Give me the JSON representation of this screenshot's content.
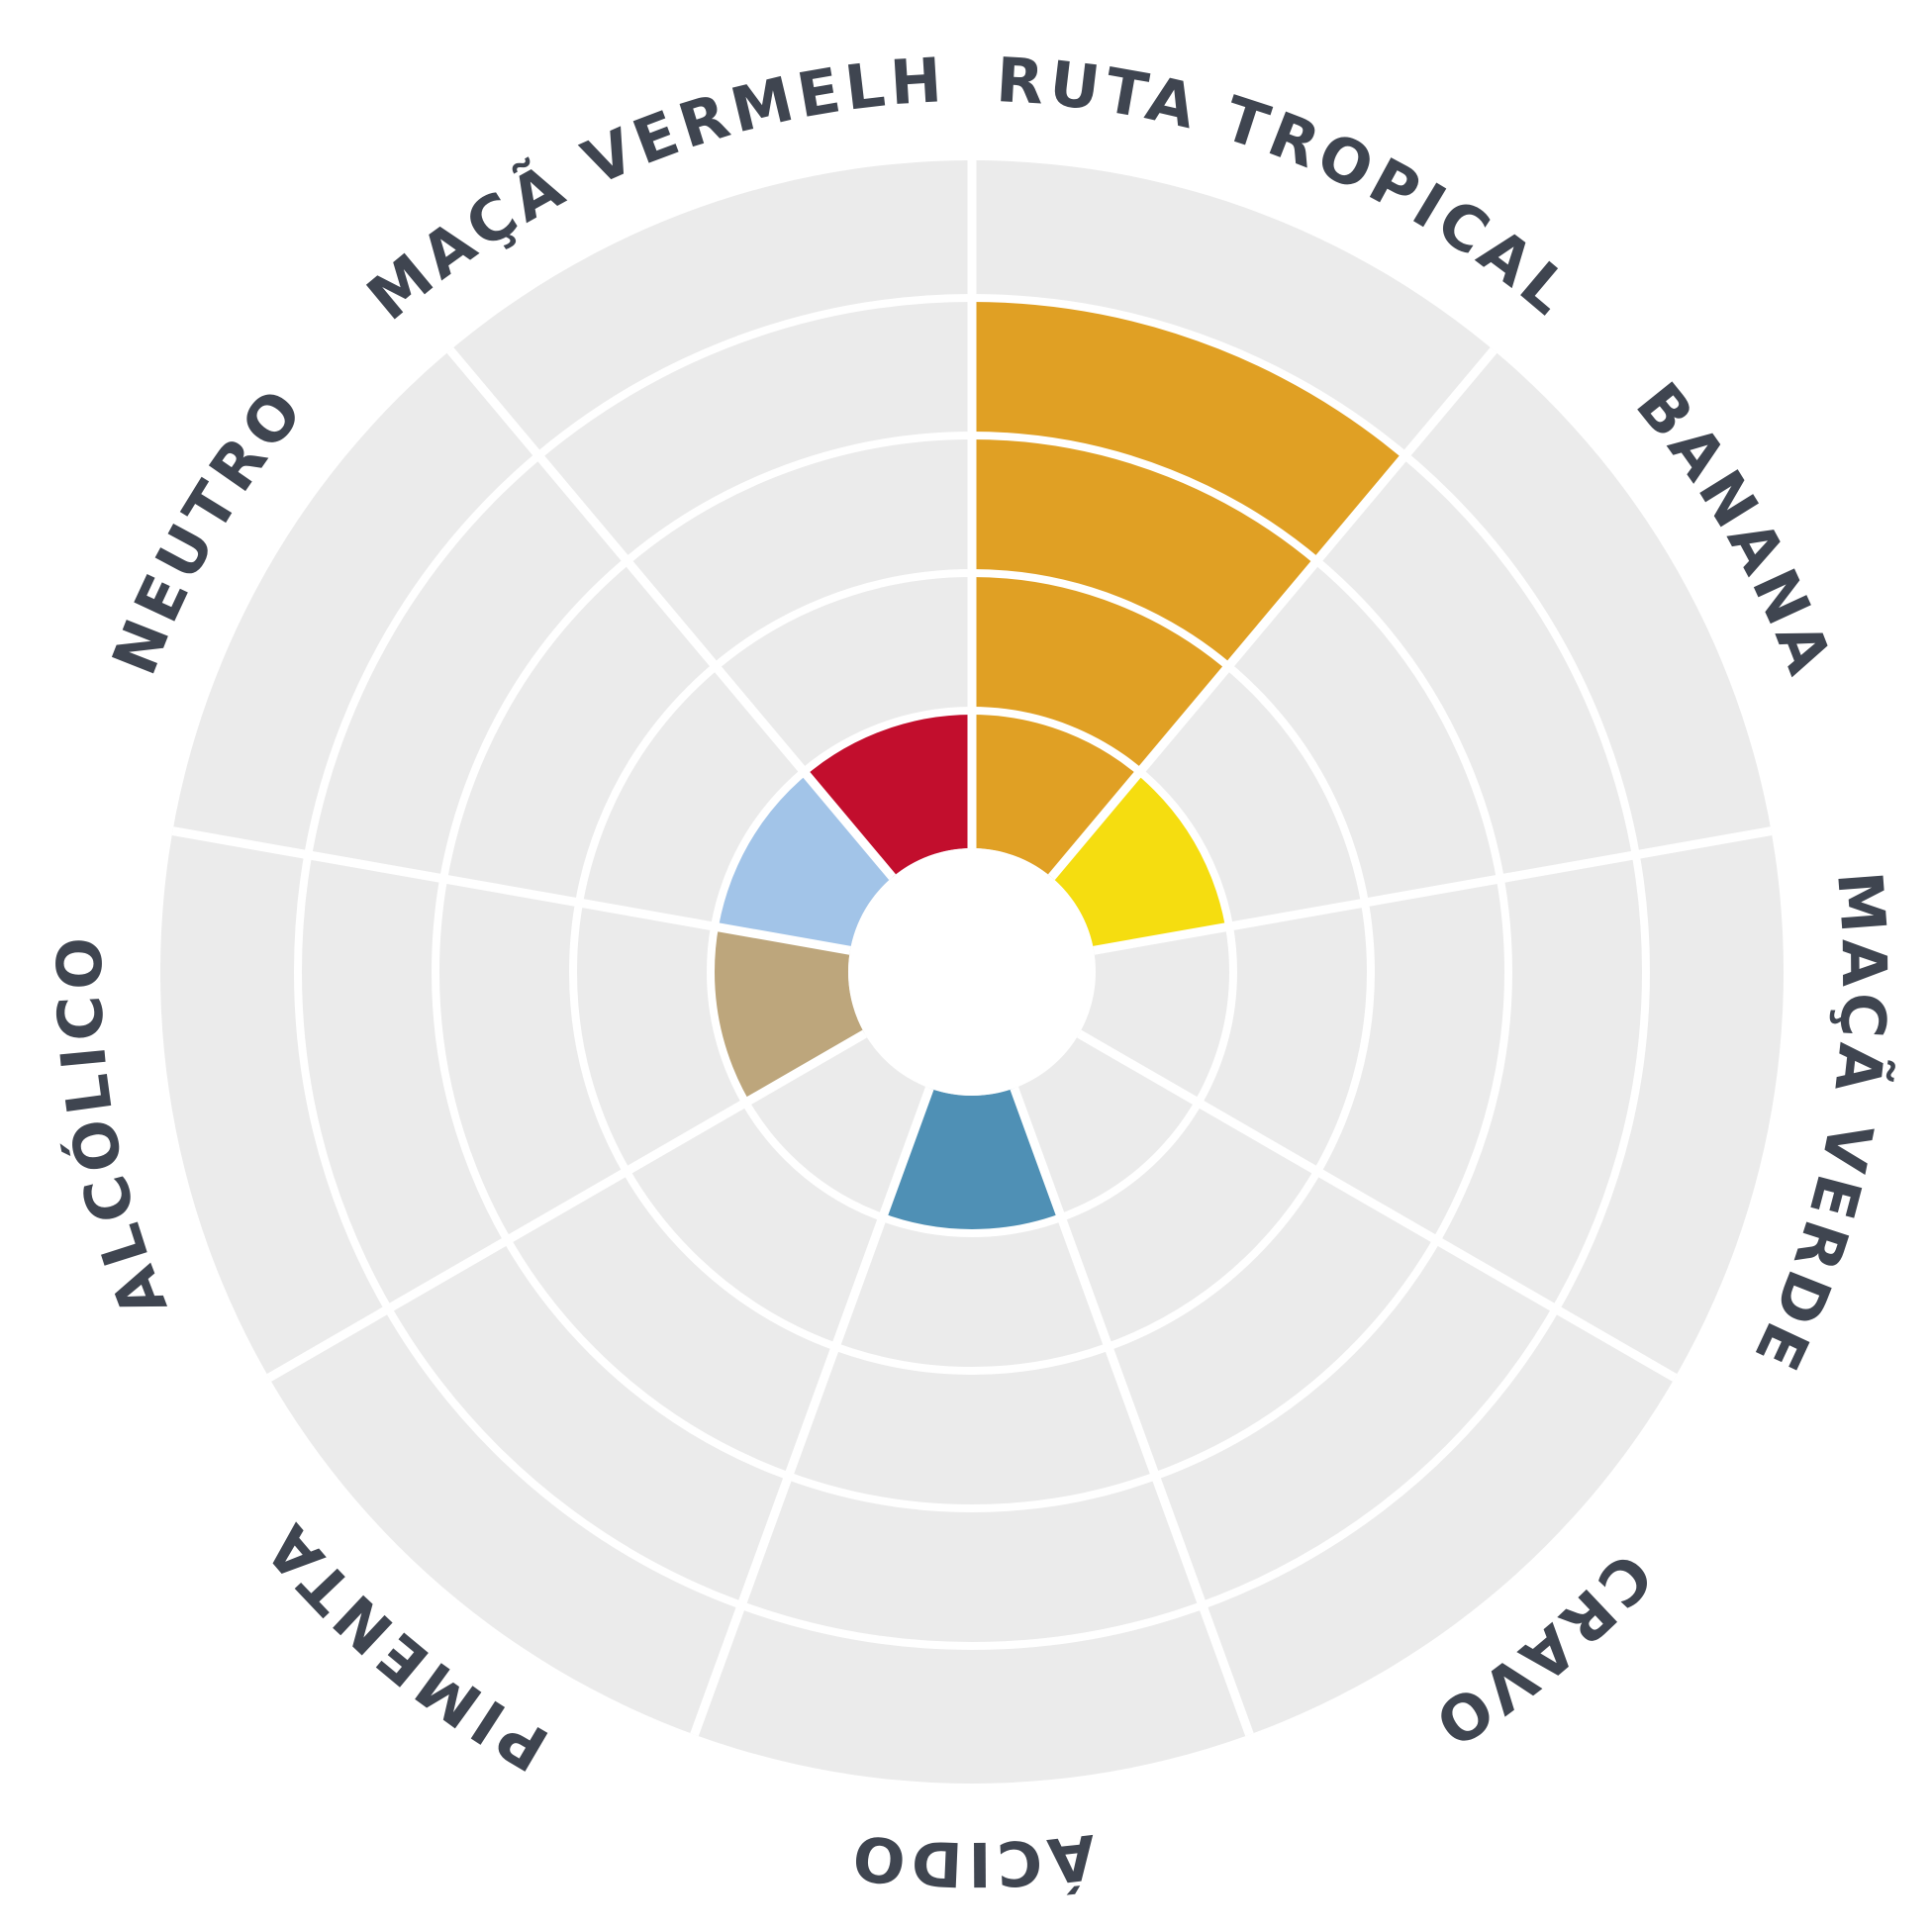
{
  "chart_data": {
    "type": "polar-bar",
    "categories": [
      "FRUTA TROPICAL",
      "BANANA",
      "MAÇÃ VERDE",
      "CRAVO",
      "ÁCIDO",
      "PIMENTA",
      "ALCÓLICO",
      "NEUTRO",
      "MAÇÃ VERMELHA"
    ],
    "values": [
      4,
      1,
      0,
      0,
      1,
      0,
      1,
      1,
      1
    ],
    "colors": [
      "#e0a024",
      "#f5dd10",
      "#8fbf4f",
      "#9b6a3c",
      "#4f90b5",
      "#555555",
      "#bda67c",
      "#a2c4e8",
      "#c20e2d"
    ],
    "ylim": [
      0,
      5
    ],
    "yticks": [
      1,
      2,
      3,
      4
    ],
    "grid": true
  }
}
